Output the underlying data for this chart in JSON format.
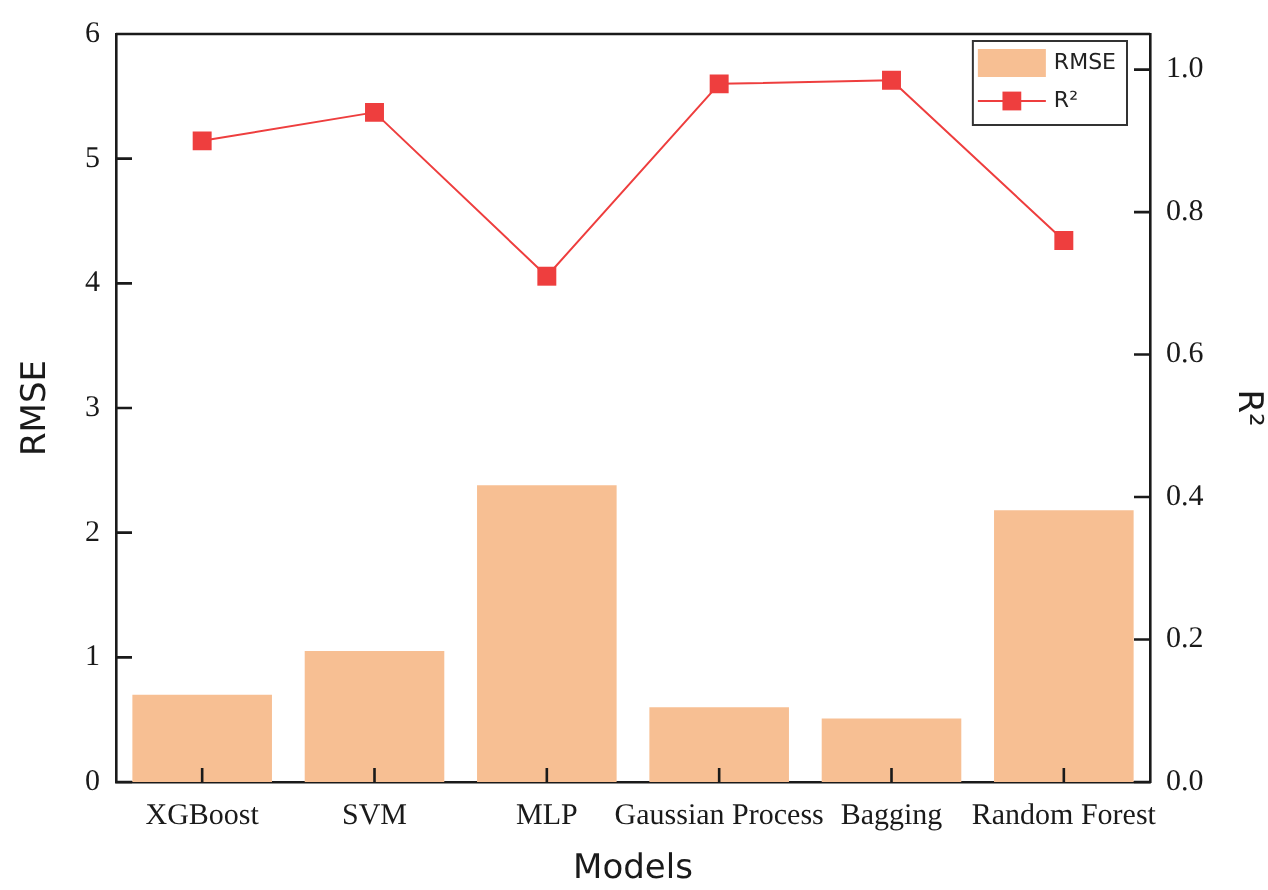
{
  "chart_data": {
    "type": "bar",
    "xlabel": "Models",
    "ylabel": "RMSE",
    "y2label": "R²",
    "categories": [
      "XGBoost",
      "SVM",
      "MLP",
      "Gaussian Process",
      "Bagging",
      "Random Forest"
    ],
    "series": [
      {
        "name": "RMSE",
        "color": "#f7bf93",
        "values": [
          0.7,
          1.05,
          2.38,
          0.6,
          0.51,
          2.18
        ]
      },
      {
        "name": "R²",
        "type": "line",
        "axis": "y2",
        "color": "#ee3e3e",
        "values": [
          0.9,
          0.94,
          0.71,
          0.98,
          0.985,
          0.76
        ]
      }
    ],
    "ylim": [
      0,
      6
    ],
    "yticks": [
      0,
      1,
      2,
      3,
      4,
      5,
      6
    ],
    "y2lim": [
      0,
      1.05
    ],
    "y2ticks": [
      {
        "value": 0,
        "label": "0.0"
      },
      0.2,
      0.4,
      0.6,
      0.8,
      {
        "value": 1,
        "label": "1.0"
      }
    ],
    "legend": "top right",
    "marker": "square",
    "grid": false
  }
}
